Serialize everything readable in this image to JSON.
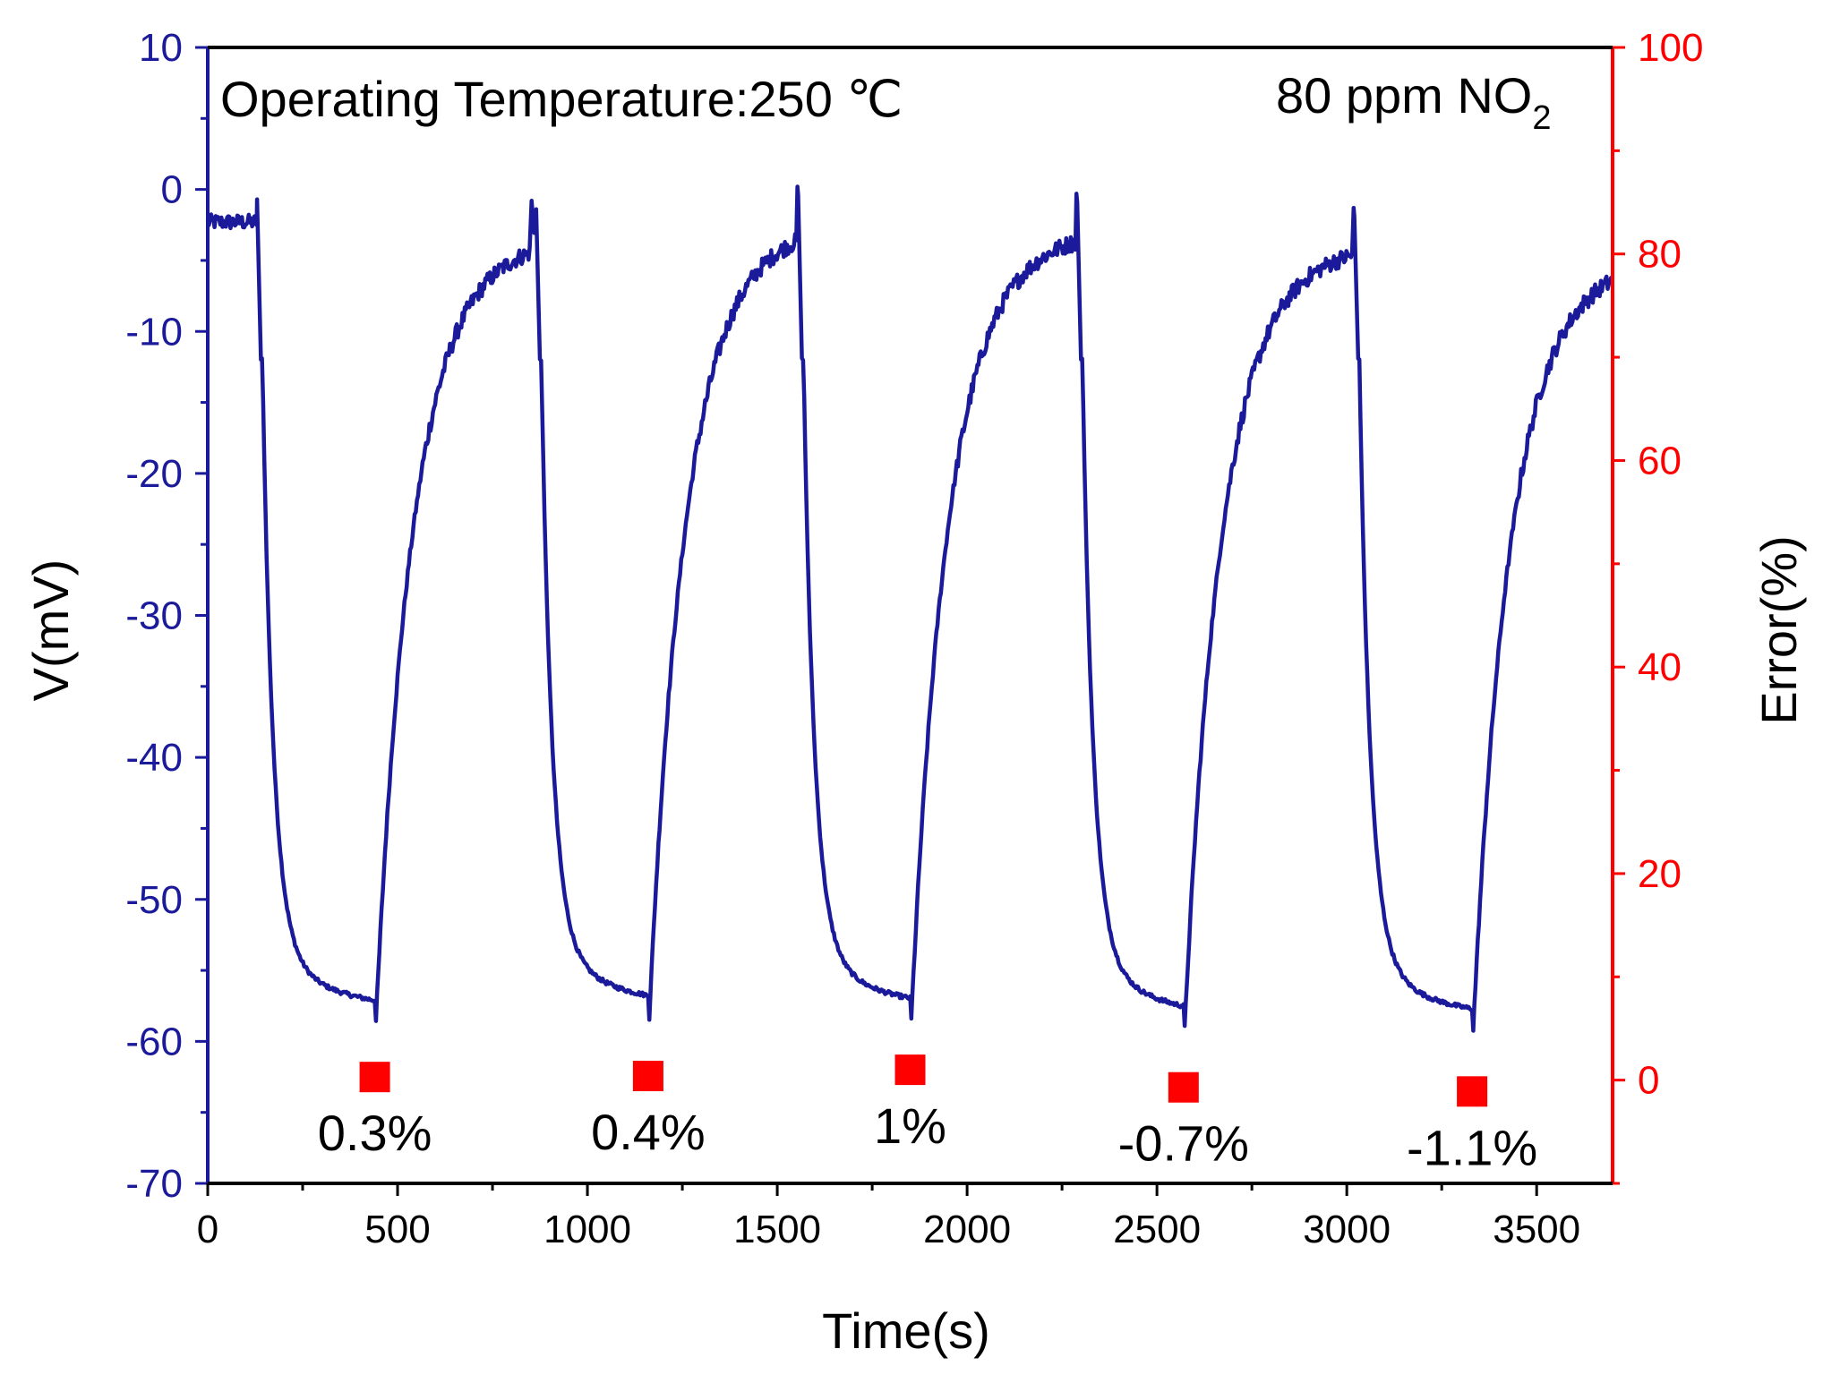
{
  "chart_data": {
    "type": "line",
    "title": "",
    "annotations": {
      "temperature": "Operating Temperature:250 ℃",
      "gas_prefix": "80 ppm NO",
      "gas_subscript": "2"
    },
    "xlabel": "Time(s)",
    "ylabel": "V(mV)",
    "y2label": "Error(%)",
    "xlim": [
      0,
      3700
    ],
    "ylim": [
      -70,
      10
    ],
    "y2lim": [
      -10,
      100
    ],
    "x_ticks": [
      "0",
      "500",
      "1000",
      "1500",
      "2000",
      "2500",
      "3000",
      "3500"
    ],
    "y_ticks": [
      "10",
      "0",
      "-10",
      "-20",
      "-30",
      "-40",
      "-50",
      "-60",
      "-70"
    ],
    "y2_ticks": [
      "100",
      "80",
      "60",
      "40",
      "20",
      "0"
    ],
    "colors": {
      "voltage": "#1a1a9a",
      "left_axis": "#1a1a9a",
      "right_axis": "#ff0000",
      "error_marker": "#ff0000",
      "text": "#000000"
    },
    "series": [
      {
        "name": "Voltage",
        "axis": "left",
        "style": "line",
        "cycles": [
          {
            "start": 0,
            "drop": 130,
            "drop_end": 140,
            "base": -2.3,
            "valley": -56.8,
            "rise": 440,
            "peak_t": 850,
            "peak": -3.0
          },
          {
            "start": 860,
            "drop": 865,
            "drop_end": 875,
            "base": -3.0,
            "valley": -56.5,
            "rise": 1160,
            "peak_t": 1550,
            "peak": -2.0
          },
          {
            "start": 1555,
            "drop": 1555,
            "drop_end": 1565,
            "base": -2.0,
            "valley": -56.7,
            "rise": 1850,
            "peak_t": 2285,
            "peak": -2.5
          },
          {
            "start": 2290,
            "drop": 2290,
            "drop_end": 2300,
            "base": -2.5,
            "valley": -57.3,
            "rise": 2570,
            "peak_t": 3015,
            "peak": -3.5
          },
          {
            "start": 3020,
            "drop": 3020,
            "drop_end": 3030,
            "base": -3.5,
            "valley": -57.4,
            "rise": 3330,
            "peak_t": 3700,
            "peak": -4.5
          }
        ]
      },
      {
        "name": "Error",
        "axis": "right",
        "style": "square-marker",
        "points": [
          {
            "x": 440,
            "y": 0.3,
            "label": "0.3%"
          },
          {
            "x": 1160,
            "y": 0.4,
            "label": "0.4%"
          },
          {
            "x": 1850,
            "y": 1.0,
            "label": "1%"
          },
          {
            "x": 2570,
            "y": -0.7,
            "label": "-0.7%"
          },
          {
            "x": 3330,
            "y": -1.1,
            "label": "-1.1%"
          }
        ]
      }
    ]
  }
}
